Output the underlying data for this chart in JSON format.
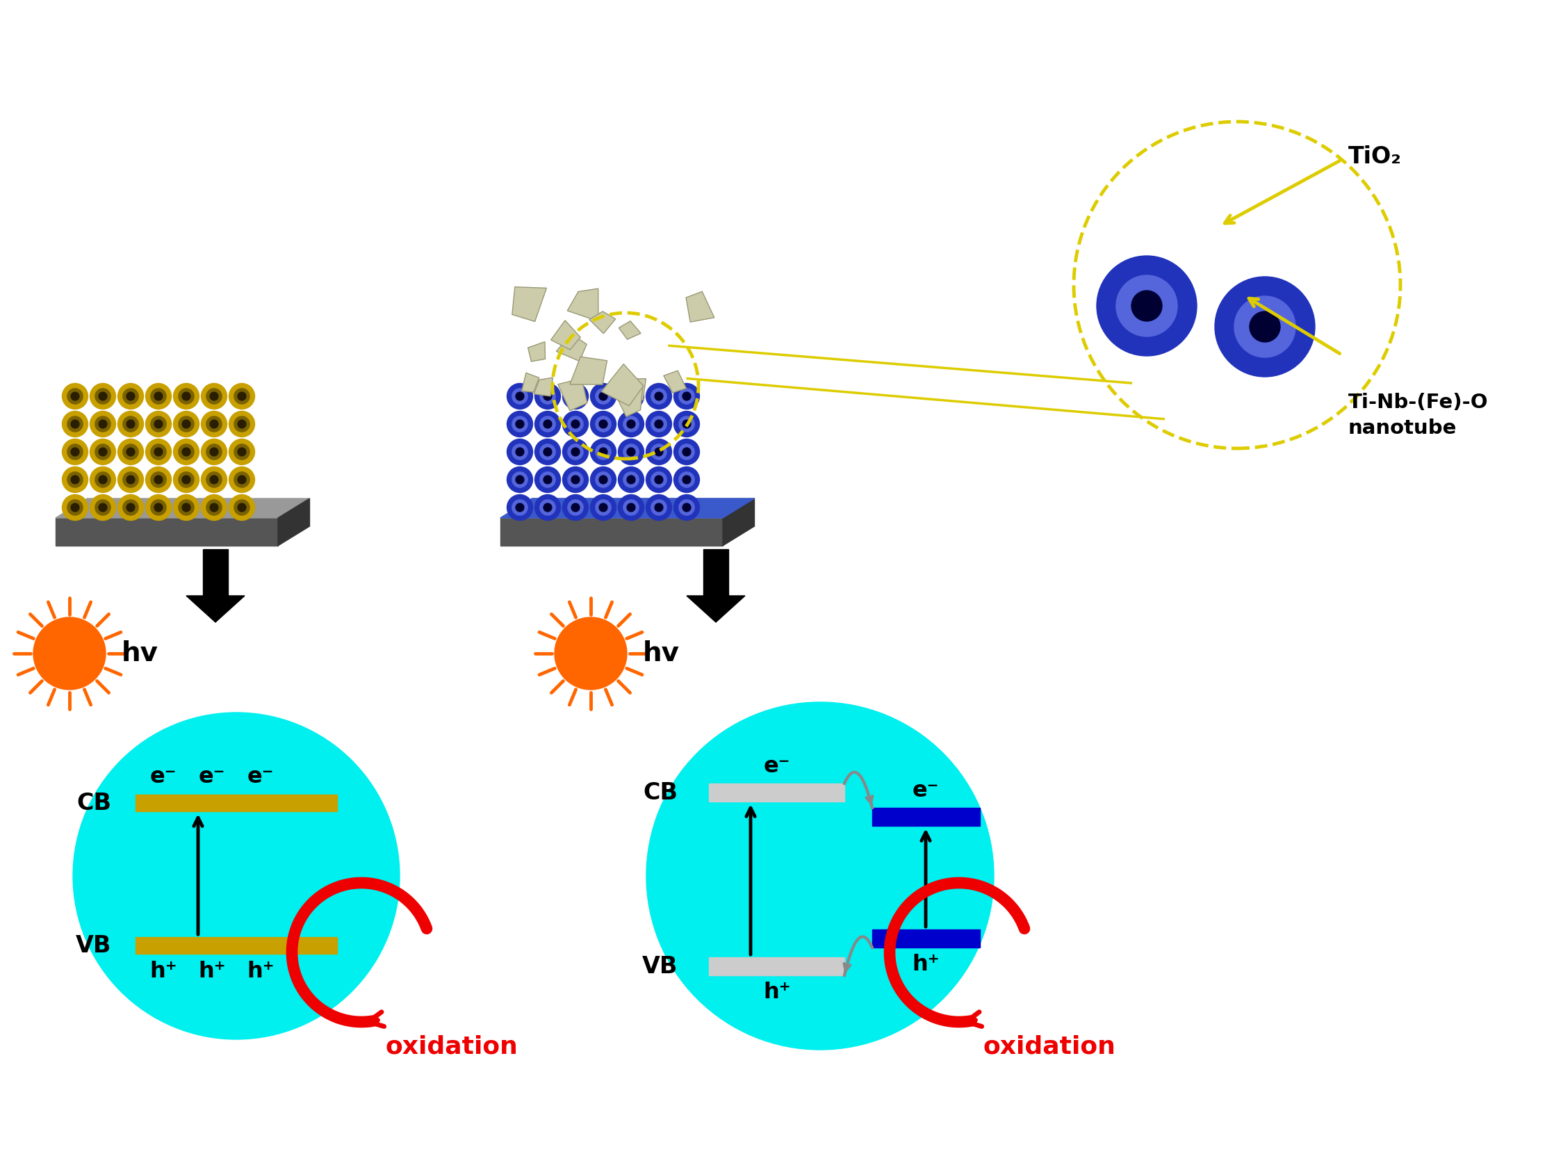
{
  "bg_color": "#ffffff",
  "cyan_color": "#00EFEF",
  "gold_color": "#C8A000",
  "blue_tube": "#2233BB",
  "blue_inner": "#5566DD",
  "blue_band": "#0000CC",
  "red_color": "#EE0000",
  "sun_color": "#FF6600",
  "yellow_dashed": "#DDCC00",
  "gray_band": "#CCCCCC",
  "label_tio2": "TiO₂",
  "label_nanotube": "Ti-Nb-(Fe)-O\nnanotube",
  "label_hv": "hv",
  "label_CB": "CB",
  "label_VB": "VB",
  "label_oxidation": "oxidation",
  "label_eminus": "e⁻",
  "label_hplus": "h⁺"
}
